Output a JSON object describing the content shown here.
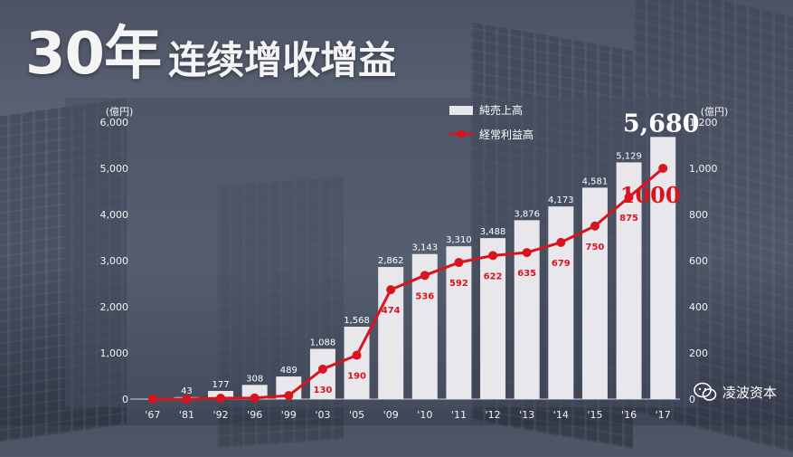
{
  "title": {
    "number": "30年",
    "rest": "连续增收增益"
  },
  "watermark": {
    "text": "凌波资本",
    "icon": "wechat-icon"
  },
  "colors": {
    "bar": "#e8e8ec",
    "profit_line": "#d8141f",
    "text": "#f2f2f2"
  },
  "chart_data": {
    "type": "bar",
    "categories": [
      "67",
      "81",
      "92",
      "96",
      "99",
      "03",
      "05",
      "09",
      "10",
      "11",
      "12",
      "13",
      "14",
      "15",
      "16",
      "17"
    ],
    "category_prefix": "'",
    "left_axis": {
      "unit": "(億円)",
      "ticks": [
        "0",
        "1,000",
        "2,000",
        "3,000",
        "4,000",
        "5,000",
        "6,000"
      ],
      "ylim": [
        0,
        6000
      ]
    },
    "right_axis": {
      "unit": "(億円)",
      "ticks": [
        "0",
        "200",
        "400",
        "600",
        "800",
        "1,000",
        "1,200"
      ],
      "ylim": [
        0,
        1200
      ]
    },
    "legend_position": "top-center",
    "series": [
      {
        "name": "純売上高",
        "type": "bar",
        "axis": "left",
        "values": [
          1,
          43,
          177,
          308,
          489,
          1088,
          1568,
          2862,
          3143,
          3310,
          3488,
          3876,
          4173,
          4581,
          5129,
          5680
        ],
        "labels": [
          "",
          "43",
          "177",
          "308",
          "489",
          "1,088",
          "1,568",
          "2,862",
          "3,143",
          "3,310",
          "3,488",
          "3,876",
          "4,173",
          "4,581",
          "5,129",
          "5,680"
        ]
      },
      {
        "name": "経常利益高",
        "type": "line",
        "axis": "right",
        "values": [
          0,
          0,
          4,
          5,
          15,
          130,
          190,
          474,
          536,
          592,
          622,
          635,
          679,
          750,
          875,
          1000
        ],
        "labels": [
          "",
          "",
          "",
          "",
          "",
          "130",
          "190",
          "474",
          "536",
          "592",
          "622",
          "635",
          "679",
          "750",
          "875",
          "1000"
        ]
      }
    ]
  }
}
